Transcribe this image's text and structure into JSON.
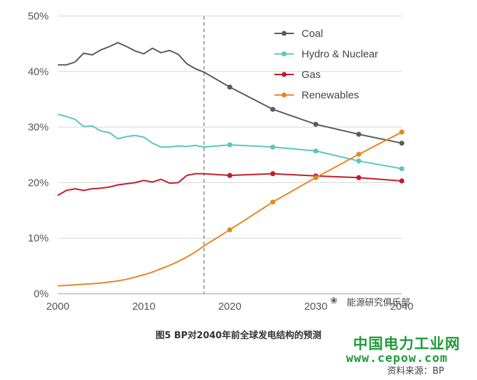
{
  "chart_data": {
    "type": "line",
    "title": "",
    "xlabel": "",
    "ylabel": "",
    "xlim": [
      2000,
      2040
    ],
    "ylim": [
      0,
      50
    ],
    "x_ticks": [
      "2000",
      "2010",
      "2020",
      "2030",
      "2040"
    ],
    "y_ticks": [
      "0%",
      "10%",
      "20%",
      "30%",
      "40%",
      "50%"
    ],
    "grid": "horizontal",
    "legend_position": "top-right",
    "divider_year": 2017,
    "series": [
      {
        "name": "Coal",
        "color": "#5b5b5d",
        "x": [
          2000,
          2001,
          2002,
          2003,
          2004,
          2005,
          2006,
          2007,
          2008,
          2009,
          2010,
          2011,
          2012,
          2013,
          2014,
          2015,
          2016,
          2017,
          2020,
          2025,
          2030,
          2035,
          2040
        ],
        "y": [
          41.2,
          41.2,
          41.7,
          43.3,
          43.0,
          43.9,
          44.5,
          45.2,
          44.5,
          43.7,
          43.2,
          44.2,
          43.4,
          43.8,
          43.1,
          41.4,
          40.5,
          39.9,
          37.2,
          33.2,
          30.5,
          28.7,
          27.1
        ],
        "markers": [
          2020,
          2025,
          2030,
          2035,
          2040
        ]
      },
      {
        "name": "Hydro & Nuclear",
        "color": "#5cc6ba",
        "x": [
          2000,
          2001,
          2002,
          2003,
          2004,
          2005,
          2006,
          2007,
          2008,
          2009,
          2010,
          2011,
          2012,
          2013,
          2014,
          2015,
          2016,
          2017,
          2020,
          2025,
          2030,
          2035,
          2040
        ],
        "y": [
          32.3,
          31.9,
          31.4,
          30.1,
          30.2,
          29.3,
          29.0,
          27.9,
          28.3,
          28.5,
          28.2,
          27.1,
          26.4,
          26.4,
          26.6,
          26.5,
          26.7,
          26.4,
          26.8,
          26.4,
          25.7,
          23.9,
          22.5
        ],
        "markers": [
          2020,
          2025,
          2030,
          2035,
          2040
        ]
      },
      {
        "name": "Gas",
        "color": "#c41a2c",
        "x": [
          2000,
          2001,
          2002,
          2003,
          2004,
          2005,
          2006,
          2007,
          2008,
          2009,
          2010,
          2011,
          2012,
          2013,
          2014,
          2015,
          2016,
          2017,
          2020,
          2025,
          2030,
          2035,
          2040
        ],
        "y": [
          17.7,
          18.6,
          18.9,
          18.6,
          18.9,
          19.0,
          19.2,
          19.6,
          19.8,
          20.0,
          20.4,
          20.1,
          20.6,
          19.9,
          20.0,
          21.3,
          21.6,
          21.6,
          21.3,
          21.6,
          21.2,
          20.9,
          20.3
        ],
        "markers": [
          2020,
          2025,
          2030,
          2035,
          2040
        ]
      },
      {
        "name": "Renewables",
        "color": "#e6861f",
        "x": [
          2000,
          2001,
          2002,
          2003,
          2004,
          2005,
          2006,
          2007,
          2008,
          2009,
          2010,
          2011,
          2012,
          2013,
          2014,
          2015,
          2016,
          2017,
          2020,
          2025,
          2030,
          2035,
          2040
        ],
        "y": [
          1.4,
          1.5,
          1.6,
          1.7,
          1.8,
          1.9,
          2.1,
          2.3,
          2.6,
          3.0,
          3.4,
          3.9,
          4.5,
          5.1,
          5.8,
          6.6,
          7.5,
          8.6,
          11.5,
          16.5,
          20.9,
          25.1,
          29.1
        ],
        "markers": [
          2020,
          2025,
          2030,
          2035,
          2040
        ]
      }
    ]
  },
  "caption": "图5  BP对2040年前全球发电结构的预测",
  "watermark": {
    "icon": "wechat-icon",
    "text": "能源研究俱乐部"
  },
  "brand": {
    "name": "中国电力工业网",
    "url": "www.cepow.com"
  },
  "source": "资料来源：BP"
}
